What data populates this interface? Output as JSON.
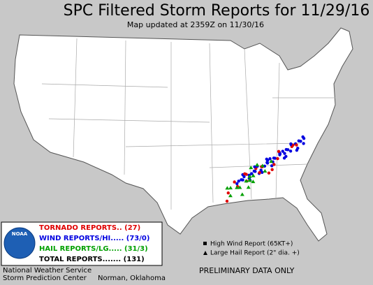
{
  "header": {
    "title": "SPC Filtered Storm Reports for 11/29/16",
    "subtitle": "Map updated at 2359Z on 11/30/16"
  },
  "legend": {
    "logo": "NOAA",
    "items": [
      {
        "label": "TORNADO REPORTS.. (27)",
        "color": "#e00000"
      },
      {
        "label": "WIND REPORTS/HI..... (73/0)",
        "color": "#0000e0"
      },
      {
        "label": "HAIL REPORTS/LG..... (31/3)",
        "color": "#00a000"
      },
      {
        "label": "TOTAL REPORTS....... (131)",
        "color": "#000000"
      }
    ]
  },
  "footer": {
    "agency": "National Weather Service",
    "center": "Storm Prediction Center",
    "location": "Norman, Oklahoma"
  },
  "key": {
    "items": [
      "High Wind Report (65KT+)",
      "Large Hail Report (2\" dia. +)"
    ]
  },
  "notice": "PRELIMINARY DATA ONLY"
}
